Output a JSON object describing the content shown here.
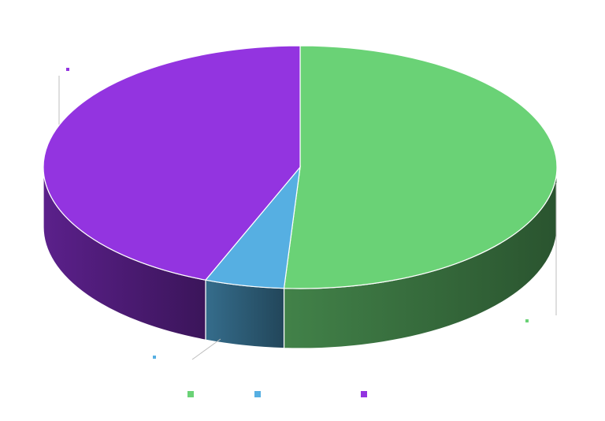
{
  "chart_data": {
    "type": "pie",
    "title": "",
    "style": "3d",
    "legend_position": "bottom",
    "slices": [
      {
        "label": "",
        "value": 51,
        "color": "#6AD276"
      },
      {
        "label": "",
        "value": 5,
        "color": "#56AFE2"
      },
      {
        "label": "",
        "value": 44,
        "color": "#9334E0"
      }
    ]
  }
}
